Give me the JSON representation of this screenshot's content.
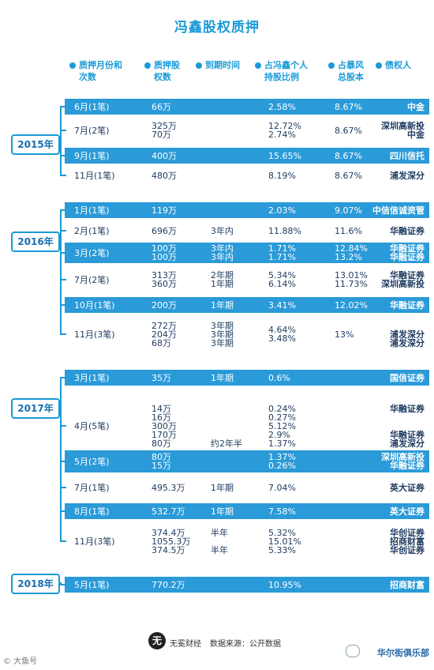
{
  "title": "冯鑫股权质押",
  "headers": {
    "month": [
      "质押月份和",
      "次数"
    ],
    "amount": [
      "质押股",
      "权数"
    ],
    "due": [
      "到期时间"
    ],
    "ratio": [
      "占冯鑫个人",
      "持股比例"
    ],
    "total": [
      "占暴风",
      "总股本"
    ],
    "creditor": [
      "债权人"
    ]
  },
  "chart_data": {
    "type": "table",
    "columns": [
      "质押月份和次数",
      "质押股权数",
      "到期时间",
      "占冯鑫个人持股比例",
      "占暴风总股本",
      "债权人"
    ],
    "groups": [
      {
        "year": "2015年",
        "rows": [
          {
            "month": "6月(1笔)",
            "amount": [
              "66万"
            ],
            "due": [],
            "ratio": [
              "2.58%"
            ],
            "total": [
              "8.67%"
            ],
            "creditor": [
              "中金"
            ],
            "band": true
          },
          {
            "month": "7月(2笔)",
            "amount": [
              "325万",
              "70万"
            ],
            "due": [],
            "ratio": [
              "12.72%",
              "2.74%"
            ],
            "total": [
              "8.67%"
            ],
            "creditor": [
              "深圳高新投",
              "中金"
            ],
            "band": false
          },
          {
            "month": "9月(1笔)",
            "amount": [
              "400万"
            ],
            "due": [],
            "ratio": [
              "15.65%"
            ],
            "total": [
              "8.67%"
            ],
            "creditor": [
              "四川信托"
            ],
            "band": true
          },
          {
            "month": "11月(1笔)",
            "amount": [
              "480万"
            ],
            "due": [],
            "ratio": [
              "8.19%"
            ],
            "total": [
              "8.67%"
            ],
            "creditor": [
              "浦发深分"
            ],
            "band": false
          }
        ]
      },
      {
        "year": "2016年",
        "rows": [
          {
            "month": "1月(1笔)",
            "amount": [
              "119万"
            ],
            "due": [],
            "ratio": [
              "2.03%"
            ],
            "total": [
              "9.07%"
            ],
            "creditor": [
              "中信信诚资管"
            ],
            "band": true
          },
          {
            "month": "2月(1笔)",
            "amount": [
              "696万"
            ],
            "due": [
              "3年内"
            ],
            "ratio": [
              "11.88%"
            ],
            "total": [
              "11.6%"
            ],
            "creditor": [
              "华融证券"
            ],
            "band": false
          },
          {
            "month": "3月(2笔)",
            "amount": [
              "100万",
              "100万"
            ],
            "due": [
              "3年内",
              "3年内"
            ],
            "ratio": [
              "1.71%",
              "1.71%"
            ],
            "total": [
              "12.84%",
              "13.2%"
            ],
            "creditor": [
              "华融证券",
              "华融证券"
            ],
            "band": true
          },
          {
            "month": "7月(2笔)",
            "amount": [
              "313万",
              "360万"
            ],
            "due": [
              "2年期",
              "1年期"
            ],
            "ratio": [
              "5.34%",
              "6.14%"
            ],
            "total": [
              "13.01%",
              "11.73%"
            ],
            "creditor": [
              "华融证券",
              "深圳高新投"
            ],
            "band": false
          },
          {
            "month": "10月(1笔)",
            "amount": [
              "200万"
            ],
            "due": [
              "1年期"
            ],
            "ratio": [
              "3.41%"
            ],
            "total": [
              "12.02%"
            ],
            "creditor": [
              "华融证券"
            ],
            "band": true
          },
          {
            "month": "11月(3笔)",
            "amount": [
              "272万",
              "204万",
              "68万"
            ],
            "due": [
              "3年期",
              "3年期",
              "3年期"
            ],
            "ratio": [
              "4.64%",
              "3.48%"
            ],
            "total": [
              "13%"
            ],
            "creditor": [
              "",
              "浦发深分",
              "浦发深分"
            ],
            "band": false
          }
        ]
      },
      {
        "year": "2017年",
        "rows": [
          {
            "month": "3月(1笔)",
            "amount": [
              "35万"
            ],
            "due": [
              "1年期"
            ],
            "ratio": [
              "0.6%"
            ],
            "total": [],
            "creditor": [
              "国信证券"
            ],
            "band": true
          },
          {
            "month": "4月(5笔)",
            "amount": [
              "14万",
              "16万",
              "300万",
              "170万",
              "80万"
            ],
            "due": [
              "",
              "",
              "",
              "",
              "约2年半"
            ],
            "ratio": [
              "0.24%",
              "0.27%",
              "5.12%",
              "2.9%",
              "1.37%"
            ],
            "total": [],
            "creditor": [
              "华融证券",
              "",
              "",
              "华融证券",
              "浦发深分"
            ],
            "band": false
          },
          {
            "month": "5月(2笔)",
            "amount": [
              "80万",
              "15万"
            ],
            "due": [],
            "ratio": [
              "1.37%",
              "0.26%"
            ],
            "total": [],
            "creditor": [
              "深圳高新投",
              "华融证券"
            ],
            "band": true
          },
          {
            "month": "7月(1笔)",
            "amount": [
              "495.3万"
            ],
            "due": [
              "1年期"
            ],
            "ratio": [
              "7.04%"
            ],
            "total": [],
            "creditor": [
              "英大证券"
            ],
            "band": false
          },
          {
            "month": "8月(1笔)",
            "amount": [
              "532.7万"
            ],
            "due": [
              "1年期"
            ],
            "ratio": [
              "7.58%"
            ],
            "total": [],
            "creditor": [
              "英大证券"
            ],
            "band": true
          },
          {
            "month": "11月(3笔)",
            "amount": [
              "374.4万",
              "1055.3万",
              "374.5万"
            ],
            "due": [
              "半年",
              "",
              "半年"
            ],
            "ratio": [
              "5.32%",
              "15.01%",
              "5.33%"
            ],
            "total": [],
            "creditor": [
              "华创证券",
              "招商财富",
              "华创证券"
            ],
            "band": false
          }
        ]
      },
      {
        "year": "2018年",
        "rows": [
          {
            "month": "5月(1笔)",
            "amount": [
              "770.2万"
            ],
            "due": [],
            "ratio": [
              "10.95%"
            ],
            "total": [],
            "creditor": [
              "招商财富"
            ],
            "band": true
          }
        ]
      }
    ]
  },
  "footer": {
    "logo_char": "无",
    "brand": "无冕财经",
    "source": "数据来源：公开数据",
    "watermark_left": "© 大鱼号",
    "watermark_right": "华尔街俱乐部"
  },
  "colors": {
    "accent": "#1a9ad6",
    "band": "#2a9ad8",
    "text": "#1e3a5f"
  }
}
